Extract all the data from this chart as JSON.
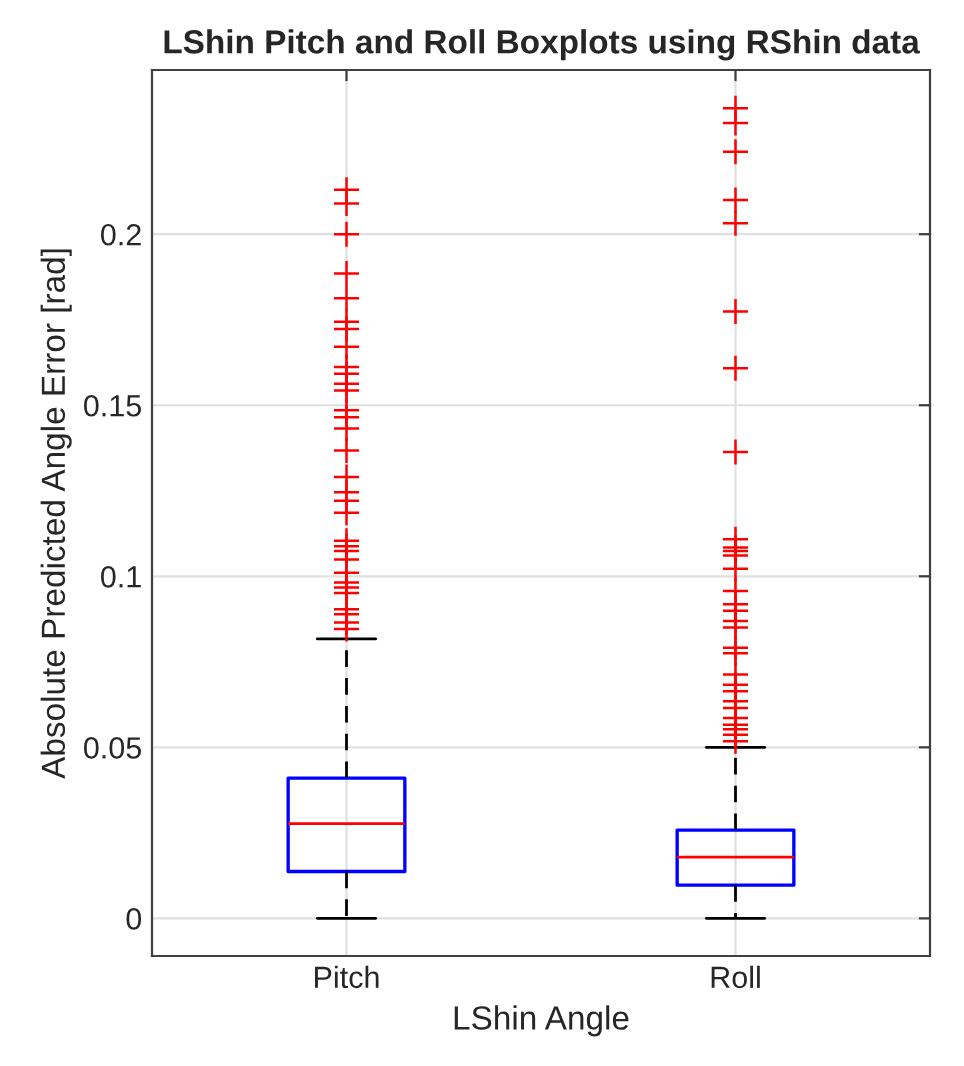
{
  "chart_data": {
    "type": "box",
    "title": "LShin Pitch and Roll Boxplots using RShin data",
    "xlabel": "LShin Angle",
    "ylabel": "Absolute Predicted Angle Error [rad]",
    "categories": [
      "Pitch",
      "Roll"
    ],
    "series": [
      {
        "color": "#0000ff",
        "boxes": [
          {
            "low": 0,
            "q1": 0.0137,
            "median": 0.0277,
            "q3": 0.041,
            "high": 0.0817,
            "outliers": [
              0.213,
              0.209,
              0.2,
              0.1885,
              0.1813,
              0.1744,
              0.1723,
              0.1671,
              0.1612,
              0.1592,
              0.1563,
              0.1543,
              0.1485,
              0.1465,
              0.1432,
              0.1368,
              0.129,
              0.1246,
              0.1221,
              0.1186,
              0.1104,
              0.1088,
              0.1074,
              0.1049,
              0.101,
              0.0982,
              0.0967,
              0.0951,
              0.0904,
              0.0889,
              0.0865,
              0.0846
            ]
          },
          {
            "low": 0,
            "q1": 0.0097,
            "median": 0.0179,
            "q3": 0.0258,
            "high": 0.05,
            "outliers": [
              0.2368,
              0.2325,
              0.2241,
              0.21,
              0.2032,
              0.1774,
              0.1608,
              0.1363,
              0.1108,
              0.1084,
              0.1074,
              0.1061,
              0.1022,
              0.0957,
              0.0918,
              0.0899,
              0.0869,
              0.085,
              0.0791,
              0.0775,
              0.0713,
              0.0683,
              0.0664,
              0.0635,
              0.0615,
              0.0586,
              0.0566,
              0.0553,
              0.0537,
              0.0518
            ]
          }
        ]
      }
    ],
    "ylim": [
      -0.011,
      0.248
    ],
    "yticks": [
      0,
      0.05,
      0.1,
      0.15,
      0.2
    ],
    "grid": true,
    "marker": "cross"
  }
}
